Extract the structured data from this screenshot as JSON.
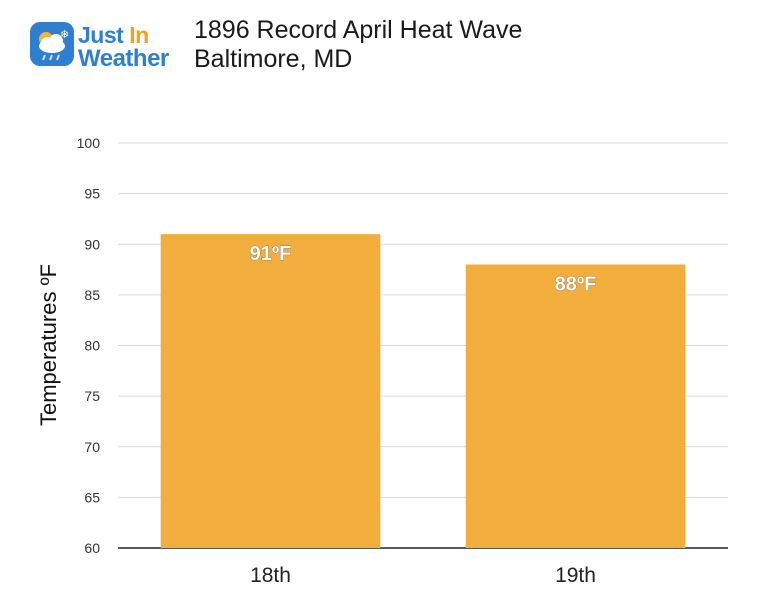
{
  "logo": {
    "line1_a": "Just",
    "line1_b": "In",
    "line2": "Weather",
    "icon": "cloud-sun-snow-icon",
    "brand_color": "#2f7fd0",
    "accent_color": "#f0a21e"
  },
  "title": {
    "line1": "1896 Record April Heat Wave",
    "line2": "Baltimore, MD"
  },
  "chart_data": {
    "type": "bar",
    "title": "1896 Record April Heat Wave",
    "subtitle": "Baltimore, MD",
    "categories": [
      "18th",
      "19th"
    ],
    "values": [
      91,
      88
    ],
    "data_labels": [
      "91ºF",
      "88ºF"
    ],
    "xlabel": "",
    "ylabel": "Temperatures ºF",
    "ylim": [
      60,
      100
    ],
    "yticks": [
      60,
      65,
      70,
      75,
      80,
      85,
      90,
      95,
      100
    ],
    "grid": true,
    "legend": "none",
    "bar_color": "#f2ae3c"
  }
}
